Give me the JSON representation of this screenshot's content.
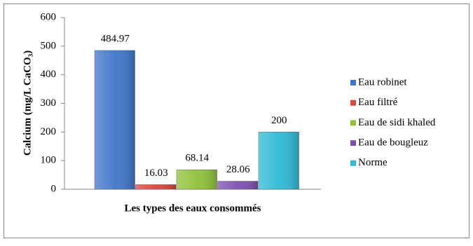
{
  "chart_data": {
    "type": "bar",
    "y_label": "Calcium (mg/L CaCO₃)",
    "x_label": "Les types des eaux consommés",
    "series": [
      {
        "name": "Eau robinet",
        "color": "#3f76c9",
        "values": [
          484.97
        ]
      },
      {
        "name": "Eau filtré",
        "color": "#d9443c",
        "values": [
          16.03
        ]
      },
      {
        "name": "Eau de sidi khaled",
        "color": "#8fc23a",
        "values": [
          68.14
        ]
      },
      {
        "name": "Eau  de bougleuz",
        "color": "#7e4fb3",
        "values": [
          28.06
        ]
      },
      {
        "name": "Norme",
        "color": "#2fbad6",
        "values": [
          200
        ]
      }
    ],
    "ylim": [
      0,
      600
    ],
    "yticks": [
      0,
      100,
      200,
      300,
      400,
      500,
      600
    ],
    "grid": false,
    "legend": "right"
  }
}
